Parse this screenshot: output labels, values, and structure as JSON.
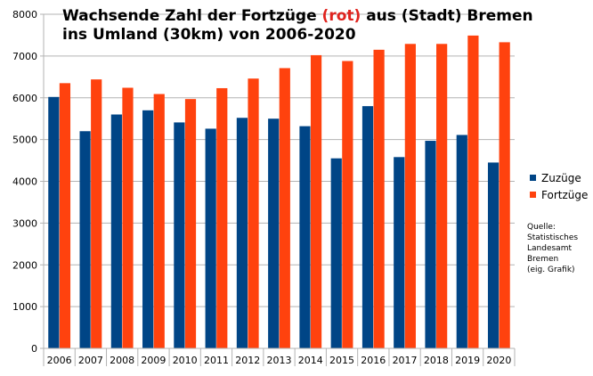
{
  "chart_data": {
    "type": "bar",
    "title": {
      "line1_prefix": "Wachsende Zahl der Fortzüge ",
      "line1_highlight": "(rot)",
      "line1_suffix": " aus (Stadt) Bremen",
      "line2": "ins Umland (30km)  von 2006-2020"
    },
    "categories": [
      "2006",
      "2007",
      "2008",
      "2009",
      "2010",
      "2011",
      "2012",
      "2013",
      "2014",
      "2015",
      "2016",
      "2017",
      "2018",
      "2019",
      "2020"
    ],
    "series": [
      {
        "name": "Zuzüge",
        "color": "#004586",
        "values": [
          6020,
          5200,
          5600,
          5700,
          5410,
          5260,
          5520,
          5500,
          5320,
          4550,
          5800,
          4580,
          4970,
          5110,
          4450
        ]
      },
      {
        "name": "Fortzüge",
        "color": "#ff420e",
        "values": [
          6350,
          6440,
          6240,
          6090,
          5970,
          6230,
          6460,
          6710,
          7020,
          6880,
          7150,
          7290,
          7290,
          7490,
          7330
        ]
      }
    ],
    "ylim": [
      0,
      8000
    ],
    "yticks": [
      "0",
      "1000",
      "2000",
      "3000",
      "4000",
      "5000",
      "6000",
      "7000",
      "8000"
    ],
    "grid": true,
    "legend_position": "right",
    "source_note": [
      "Quelle:",
      "Statistisches",
      "Landesamt",
      "Bremen",
      "(eig. Grafik)"
    ]
  }
}
